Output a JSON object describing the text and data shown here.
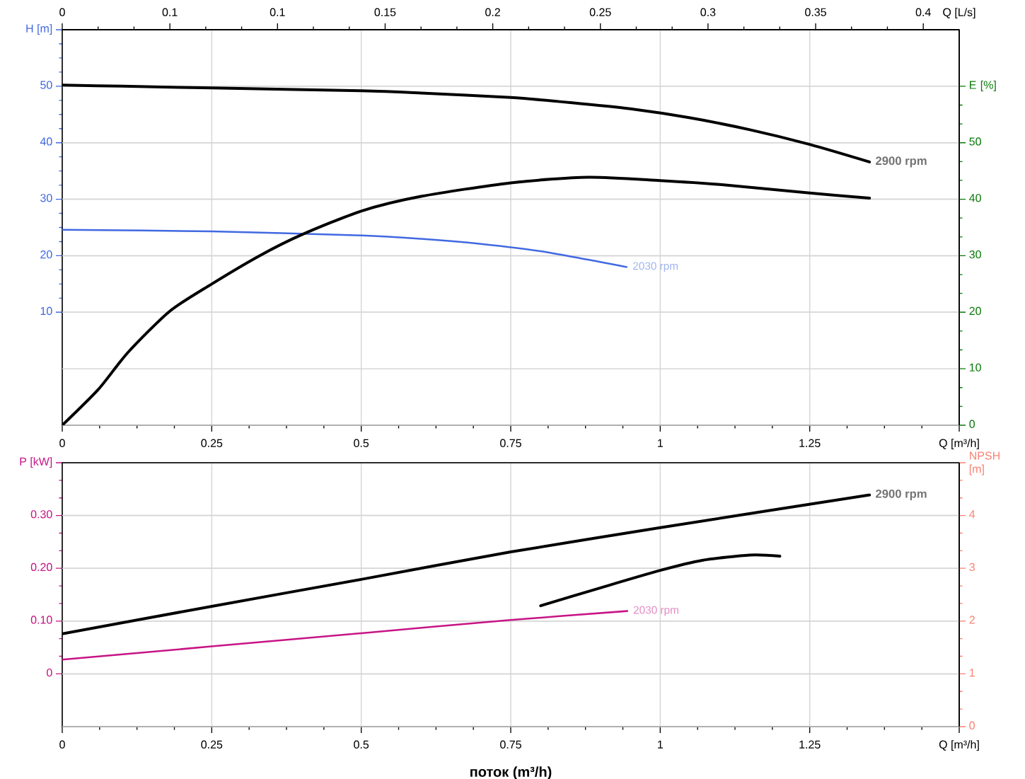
{
  "chart_data": [
    {
      "type": "line",
      "xlim": [
        0,
        1.5
      ],
      "xticks": [
        0,
        0.25,
        0.5,
        0.75,
        1,
        1.25,
        {
          "value": 1.5,
          "label": "Q [m³/h]"
        }
      ],
      "x2lim": [
        0,
        0.4167
      ],
      "x2ticks": [
        0,
        {
          "value": 0.05,
          "label": "0.1"
        },
        0.1,
        0.15,
        0.2,
        0.25,
        0.3,
        0.35,
        0.4
      ],
      "x2label": "Q [L/s]",
      "ylim": [
        -10,
        60
      ],
      "yticks": [
        10,
        20,
        30,
        40,
        50,
        {
          "value": 60,
          "label": "H [m]"
        }
      ],
      "y2lim": [
        0,
        70
      ],
      "y2ticks": [
        0,
        10,
        20,
        30,
        40,
        50,
        {
          "value": 60,
          "label": "E [%]"
        }
      ],
      "grid": true,
      "series": [
        {
          "name": "2900 rpm",
          "color": "#000000",
          "x": [
            0,
            0.1,
            0.25,
            0.5,
            0.6,
            0.75,
            0.85,
            0.95,
            1.05,
            1.15,
            1.25,
            1.35
          ],
          "values": [
            50.2,
            50.0,
            49.7,
            49.2,
            48.8,
            48.0,
            47.1,
            46.0,
            44.4,
            42.3,
            39.7,
            36.6
          ]
        },
        {
          "color": "#000000",
          "axis": "y2",
          "x": [
            0,
            0.06,
            0.11,
            0.18,
            0.25,
            0.33,
            0.4,
            0.5,
            0.6,
            0.75,
            0.88,
            1.0,
            1.1,
            1.25,
            1.35
          ],
          "values": [
            0,
            6.3,
            12.9,
            20.2,
            25.0,
            30.0,
            33.7,
            37.9,
            40.5,
            42.9,
            43.9,
            43.3,
            42.6,
            41.1,
            40.2
          ]
        },
        {
          "name": "2030 rpm",
          "color": "#4169e1",
          "x": [
            0,
            0.25,
            0.5,
            0.6,
            0.7,
            0.8,
            0.944
          ],
          "values": [
            24.6,
            24.3,
            23.6,
            23.0,
            22.1,
            20.8,
            18.0
          ]
        }
      ]
    },
    {
      "type": "line",
      "xlim": [
        0,
        1.5
      ],
      "xticks": [
        0,
        0.25,
        0.5,
        0.75,
        1,
        1.25,
        {
          "value": 1.5,
          "label": "Q [m³/h]"
        }
      ],
      "xlabel": "поток (m³/h)",
      "ylim": [
        -0.1,
        0.4
      ],
      "yticks": [
        0,
        {
          "value": 0.1,
          "label": "0.10"
        },
        {
          "value": 0.2,
          "label": "0.20"
        },
        {
          "value": 0.3,
          "label": "0.30"
        },
        {
          "value": 0.4,
          "label": "P [kW]"
        }
      ],
      "y2lim": [
        0,
        5
      ],
      "y2ticks": [
        0,
        1,
        2,
        3,
        4,
        {
          "value": 5,
          "label": "NPSH [m]"
        }
      ],
      "grid": true,
      "series": [
        {
          "name": "2900 rpm",
          "color": "#000000",
          "x": [
            0,
            0.25,
            0.5,
            0.75,
            1.0,
            1.35
          ],
          "values": [
            0.076,
            0.128,
            0.179,
            0.231,
            0.277,
            0.339
          ]
        },
        {
          "color": "#000000",
          "axis": "y2",
          "x": [
            0.8,
            0.9,
            1.0,
            1.07,
            1.15,
            1.2
          ],
          "values": [
            2.29,
            2.63,
            2.96,
            3.15,
            3.25,
            3.23
          ]
        },
        {
          "name": "2030 rpm",
          "color": "#c71585",
          "x": [
            0,
            0.25,
            0.5,
            0.75,
            0.945
          ],
          "values": [
            0.027,
            0.052,
            0.077,
            0.102,
            0.119
          ]
        }
      ]
    }
  ]
}
